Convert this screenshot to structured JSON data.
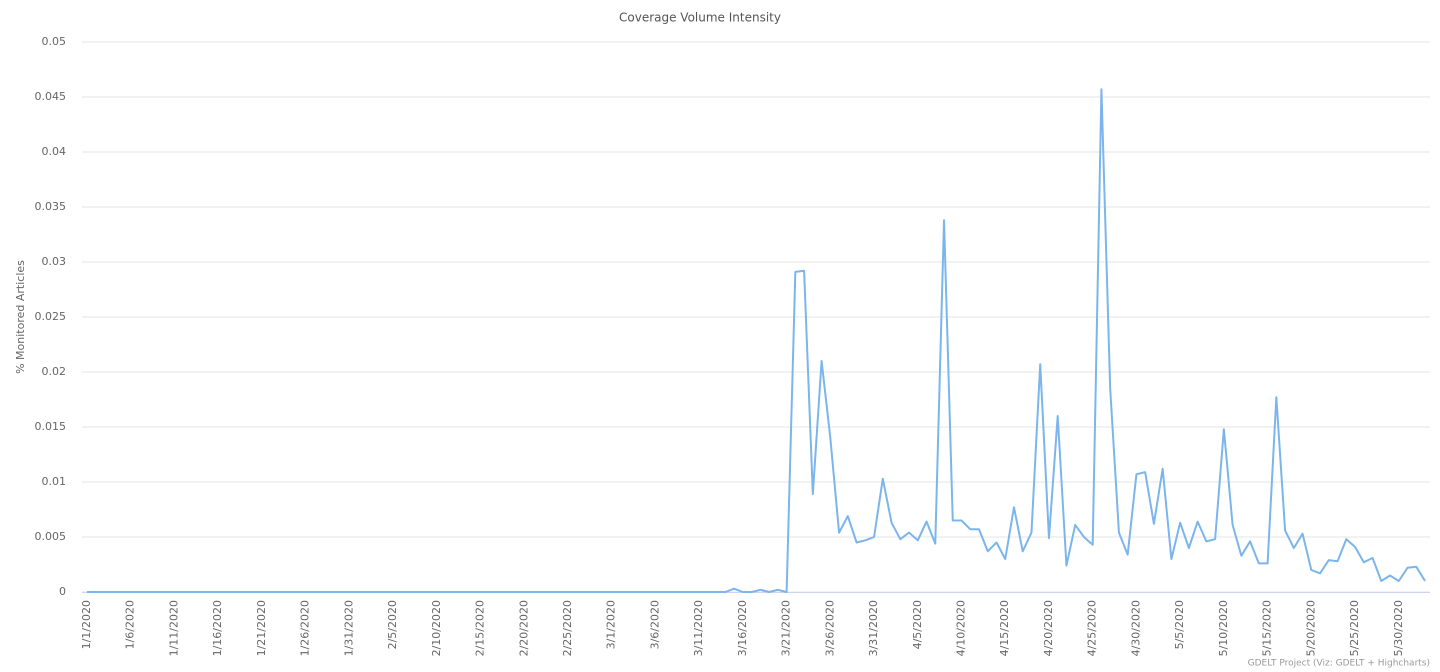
{
  "chart_data": {
    "type": "line",
    "title": "Coverage Volume Intensity",
    "y_label": "% Monitored Articles",
    "credit": "GDELT Project (Viz: GDELT + Highcharts)",
    "categories": [
      "1/1/2020",
      null,
      null,
      null,
      null,
      "1/6/2020",
      null,
      null,
      null,
      null,
      "1/11/2020",
      null,
      null,
      null,
      null,
      "1/16/2020",
      null,
      null,
      null,
      null,
      "1/21/2020",
      null,
      null,
      null,
      null,
      "1/26/2020",
      null,
      null,
      null,
      null,
      "1/31/2020",
      null,
      null,
      null,
      null,
      "2/5/2020",
      null,
      null,
      null,
      null,
      "2/10/2020",
      null,
      null,
      null,
      null,
      "2/15/2020",
      null,
      null,
      null,
      null,
      "2/20/2020",
      null,
      null,
      null,
      null,
      "2/25/2020",
      null,
      null,
      null,
      null,
      "3/1/2020",
      null,
      null,
      null,
      null,
      "3/6/2020",
      null,
      null,
      null,
      null,
      "3/11/2020",
      null,
      null,
      null,
      null,
      "3/16/2020",
      null,
      null,
      null,
      null,
      "3/21/2020",
      null,
      null,
      null,
      null,
      "3/26/2020",
      null,
      null,
      null,
      null,
      "3/31/2020",
      null,
      null,
      null,
      null,
      "4/5/2020",
      null,
      null,
      null,
      null,
      "4/10/2020",
      null,
      null,
      null,
      null,
      "4/15/2020",
      null,
      null,
      null,
      null,
      "4/20/2020",
      null,
      null,
      null,
      null,
      "4/25/2020",
      null,
      null,
      null,
      null,
      "4/30/2020",
      null,
      null,
      null,
      null,
      "5/5/2020",
      null,
      null,
      null,
      null,
      "5/10/2020",
      null,
      null,
      null,
      null,
      "5/15/2020",
      null,
      null,
      null,
      null,
      "5/20/2020",
      null,
      null,
      null,
      null,
      "5/25/2020",
      null,
      null,
      null,
      null,
      "5/30/2020",
      null,
      null,
      null
    ],
    "series": [
      {
        "name": "Coverage Volume Intensity",
        "color": "#7cb5ec",
        "values": [
          0,
          0,
          0,
          0,
          0,
          0,
          0,
          0,
          0,
          0,
          0,
          0,
          0,
          0,
          0,
          0,
          0,
          0,
          0,
          0,
          0,
          0,
          0,
          0,
          0,
          0,
          0,
          0,
          0,
          0,
          0,
          0,
          0,
          0,
          0,
          0,
          0,
          0,
          0,
          0,
          0,
          0,
          0,
          0,
          0,
          0,
          0,
          0,
          0,
          0,
          0,
          0,
          0,
          0,
          0,
          0,
          0,
          0,
          0,
          0,
          0,
          0,
          0,
          0,
          0,
          0,
          0,
          0,
          0,
          0,
          0,
          0,
          0,
          0,
          0.0003,
          0,
          0,
          0.0002,
          0,
          0.0002,
          0,
          0.0291,
          0.0292,
          0.0089,
          0.021,
          0.014,
          0.0054,
          0.0069,
          0.0045,
          0.0047,
          0.005,
          0.0103,
          0.0063,
          0.0048,
          0.0054,
          0.0047,
          0.0064,
          0.0044,
          0.0338,
          0.0065,
          0.0065,
          0.0057,
          0.0057,
          0.0037,
          0.0045,
          0.003,
          0.0077,
          0.0037,
          0.0054,
          0.0207,
          0.0049,
          0.016,
          0.0024,
          0.0061,
          0.005,
          0.0043,
          0.0457,
          0.0185,
          0.0054,
          0.0034,
          0.0107,
          0.0109,
          0.0062,
          0.0112,
          0.003,
          0.0063,
          0.004,
          0.0064,
          0.0046,
          0.0048,
          0.0148,
          0.0061,
          0.0033,
          0.0046,
          0.0026,
          0.0026,
          0.0177,
          0.0056,
          0.004,
          0.0053,
          0.002,
          0.0017,
          0.0029,
          0.0028,
          0.0048,
          0.0041,
          0.0027,
          0.0031,
          0.001,
          0.0015,
          0.001,
          0.0022,
          0.0023,
          0.001
        ]
      }
    ],
    "ylim": [
      0,
      0.05
    ],
    "yticks": [
      0,
      0.005,
      0.01,
      0.015,
      0.02,
      0.025,
      0.03,
      0.035,
      0.04,
      0.045,
      0.05
    ],
    "grid": true
  }
}
